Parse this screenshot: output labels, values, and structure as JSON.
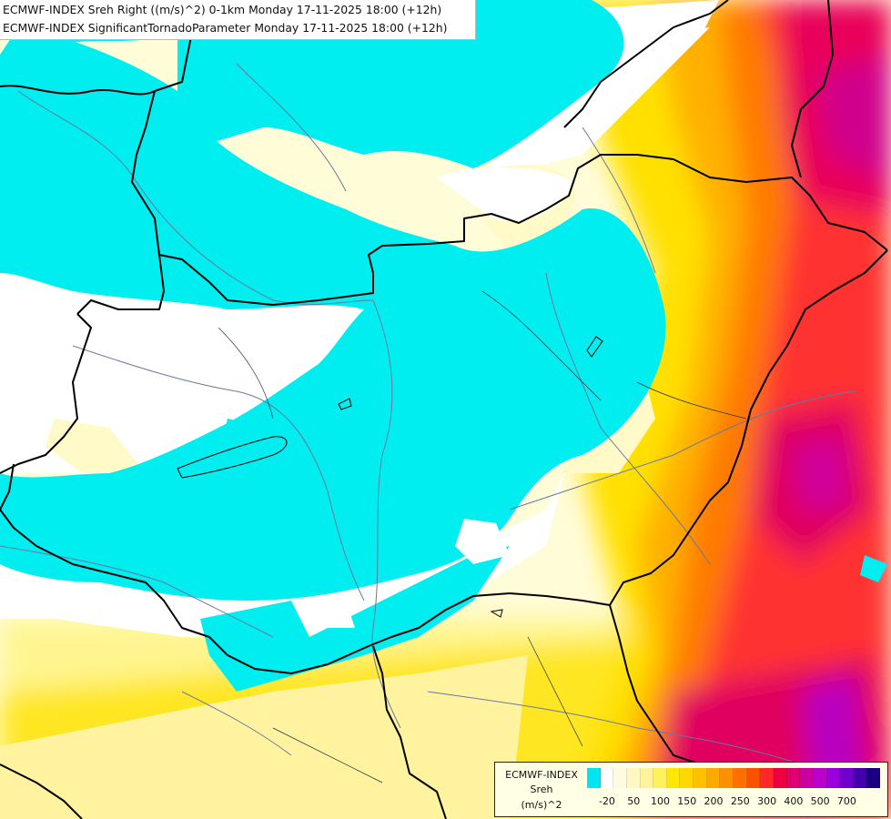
{
  "titles": {
    "line1": "ECMWF-INDEX Sreh Right ((m/s)^2) 0-1km Monday 17-11-2025 18:00 (+12h)",
    "line2": "ECMWF-INDEX SignificantTornadoParameter Monday 17-11-2025 18:00 (+12h)"
  },
  "legend": {
    "product": "ECMWF-INDEX",
    "parameter": "Sreh",
    "unit": "(m/s)^2",
    "tick_labels": [
      "-20",
      "50",
      "100",
      "150",
      "200",
      "250",
      "300",
      "400",
      "500",
      "700"
    ],
    "colors": [
      "#00e5f0",
      "#ffffff",
      "#fffbe0",
      "#fff7c0",
      "#fff3a0",
      "#fff060",
      "#ffe800",
      "#ffd800",
      "#ffc000",
      "#ffa800",
      "#ff9000",
      "#ff7000",
      "#ff5000",
      "#ff2828",
      "#ee0040",
      "#dd0070",
      "#cc00a0",
      "#bb00cc",
      "#9900dd",
      "#7000cc",
      "#4400aa",
      "#1a0080"
    ]
  },
  "map_layers": {
    "low_helicity_color": "#00f0f0",
    "background_color": "#ffffff",
    "border_color": "#000000",
    "river_color": "#6878a0"
  }
}
